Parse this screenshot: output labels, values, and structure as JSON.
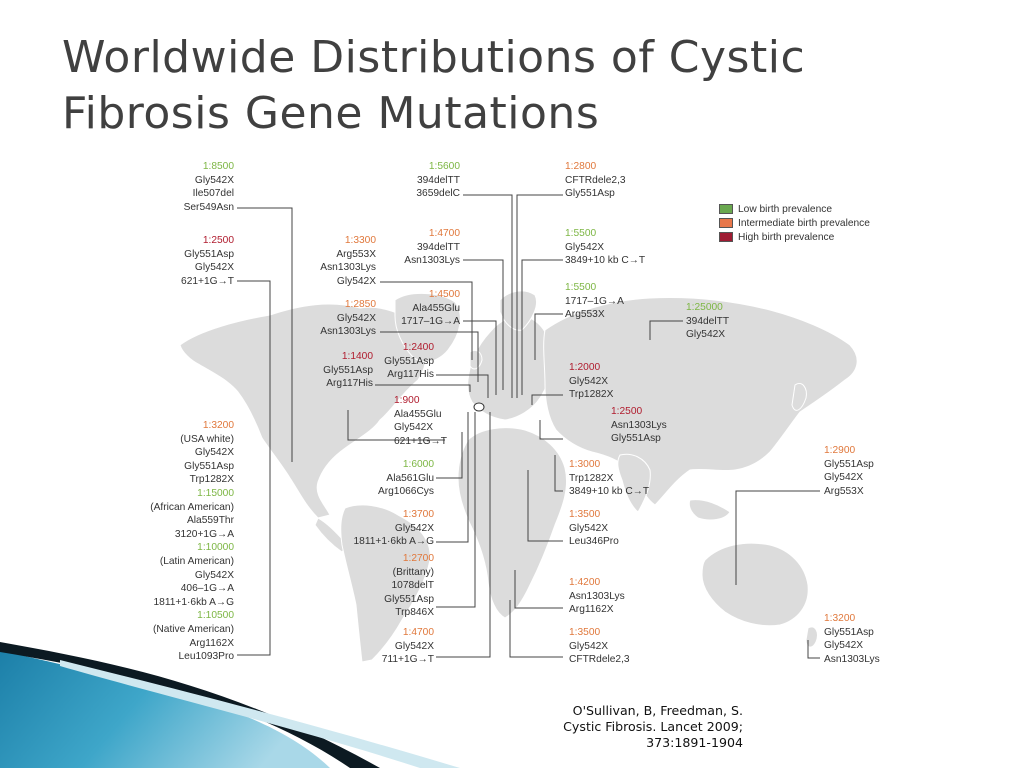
{
  "title": {
    "line1": "Worldwide Distributions of Cystic",
    "line2": "Fibrosis Gene Mutations"
  },
  "legend": [
    {
      "label": "Low birth prevalence",
      "color": "#6aa84f"
    },
    {
      "label": "Intermediate birth prevalence",
      "color": "#e8774a"
    },
    {
      "label": "High birth prevalence",
      "color": "#9e1b32"
    }
  ],
  "colors": {
    "low": "#7db644",
    "intermediate": "#e0783c",
    "high": "#b01c2e",
    "land": "#dcdcdc"
  },
  "labels": {
    "canada_1": {
      "prevalence": "1:8500",
      "level": "low",
      "mutations": [
        "Gly542X",
        "Ile507del",
        "Ser549Asn"
      ]
    },
    "canada_2": {
      "prevalence": "1:2500",
      "level": "high",
      "mutations": [
        "Gly551Asp",
        "Gly542X",
        "621+1G→T"
      ]
    },
    "usa": {
      "lines": [
        {
          "text": "1:3200",
          "level": "intermediate"
        },
        {
          "text": "(USA white)"
        },
        {
          "text": "Gly542X"
        },
        {
          "text": "Gly551Asp"
        },
        {
          "text": "Trp1282X"
        },
        {
          "text": "1:15000",
          "level": "low"
        },
        {
          "text": "(African American)"
        },
        {
          "text": "Ala559Thr"
        },
        {
          "text": "3120+1G→A"
        },
        {
          "text": "1:10000",
          "level": "low"
        },
        {
          "text": "(Latin American)"
        },
        {
          "text": "Gly542X"
        },
        {
          "text": "406–1G→A"
        },
        {
          "text": "1811+1·6kb A→G"
        },
        {
          "text": "1:10500",
          "level": "low"
        },
        {
          "text": "(Native American)"
        },
        {
          "text": "Arg1162X"
        },
        {
          "text": "Leu1093Pro"
        }
      ]
    },
    "nordic": {
      "prevalence": "1:5600",
      "level": "low",
      "mutations": [
        "394delTT",
        "3659delC"
      ]
    },
    "russia_nw": {
      "prevalence": "1:2800",
      "level": "intermediate",
      "mutations": [
        "CFTRdele2,3",
        "Gly551Asp"
      ]
    },
    "uk": {
      "prevalence": "1:3300",
      "level": "intermediate",
      "mutations": [
        "Arg553X",
        "Asn1303Lys",
        "Gly542X"
      ]
    },
    "finland": {
      "prevalence": "1:4700",
      "level": "intermediate",
      "mutations": [
        "394delTT",
        "Asn1303Lys"
      ]
    },
    "eastern_europe": {
      "prevalence": "1:5500",
      "level": "low",
      "mutations": [
        "Gly542X",
        "3849+10 kb C→T"
      ]
    },
    "germany": {
      "prevalence": "1:4500",
      "level": "intermediate",
      "mutations": [
        "Ala455Glu",
        "1717–1G→A"
      ]
    },
    "netherlands": {
      "prevalence": "1:2850",
      "level": "intermediate",
      "mutations": [
        "Gly542X",
        "Asn1303Lys"
      ]
    },
    "russia": {
      "prevalence": "1:5500",
      "level": "low",
      "mutations": [
        "1717–1G→A",
        "Arg553X"
      ]
    },
    "siberia": {
      "prevalence": "1:25000",
      "level": "low",
      "mutations": [
        "394delTT",
        "Gly542X"
      ]
    },
    "ireland": {
      "prevalence": "1:1400",
      "level": "high",
      "mutations": [
        "Gly551Asp",
        "Arg117His"
      ]
    },
    "france": {
      "prevalence": "1:2400",
      "level": "high",
      "mutations": [
        "Gly551Asp",
        "Arg117His"
      ]
    },
    "italy": {
      "prevalence": "1:900",
      "level": "high",
      "mutations": [
        "Ala455Glu",
        "Gly542X",
        "621+1G→T"
      ]
    },
    "turkey": {
      "prevalence": "1:2000",
      "level": "high",
      "mutations": [
        "Gly542X",
        "Trp1282X"
      ]
    },
    "middle_east": {
      "prevalence": "1:2500",
      "level": "high",
      "mutations": [
        "Asn1303Lys",
        "Gly551Asp"
      ]
    },
    "north_africa": {
      "prevalence": "1:6000",
      "level": "low",
      "mutations": [
        "Ala561Glu",
        "Arg1066Cys"
      ]
    },
    "arabia": {
      "prevalence": "1:3000",
      "level": "intermediate",
      "mutations": [
        "Trp1282X",
        "3849+10 kb C→T"
      ]
    },
    "east_asia": {
      "prevalence": "1:2900",
      "level": "intermediate",
      "mutations": [
        "Gly551Asp",
        "Gly542X",
        "Arg553X"
      ]
    },
    "spain": {
      "prevalence": "1:3700",
      "level": "intermediate",
      "mutations": [
        "Gly542X",
        "1811+1·6kb A→G"
      ]
    },
    "east_africa": {
      "prevalence": "1:3500",
      "level": "intermediate",
      "mutations": [
        "Gly542X",
        "Leu346Pro"
      ]
    },
    "brittany": {
      "prevalence": "1:2700",
      "level": "intermediate",
      "mutations": [
        "(Brittany)",
        "1078delT",
        "Gly551Asp",
        "Trp846X"
      ]
    },
    "southern_africa": {
      "prevalence": "1:4200",
      "level": "intermediate",
      "mutations": [
        "Asn1303Lys",
        "Arg1162X"
      ]
    },
    "portugal": {
      "prevalence": "1:4700",
      "level": "intermediate",
      "mutations": [
        "Gly542X",
        "711+1G→T"
      ]
    },
    "south_africa": {
      "prevalence": "1:3500",
      "level": "intermediate",
      "mutations": [
        "Gly542X",
        "CFTRdele2,3"
      ]
    },
    "new_zealand": {
      "prevalence": "1:3200",
      "level": "intermediate",
      "mutations": [
        "Gly551Asp",
        "Gly542X",
        "Asn1303Lys"
      ]
    }
  },
  "citation": {
    "line1": "O'Sullivan, B, Freedman, S.",
    "line2": "Cystic Fibrosis. Lancet 2009;",
    "line3": "373:1891-1904"
  }
}
